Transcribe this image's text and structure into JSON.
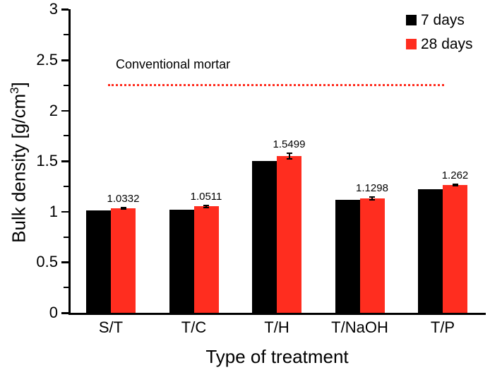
{
  "chart_data": {
    "type": "bar",
    "title": "",
    "xlabel": "Type of treatment",
    "ylabel": "Bulk density [g/cm³]",
    "categories": [
      "S/T",
      "T/C",
      "T/H",
      "T/NaOH",
      "T/P"
    ],
    "series": [
      {
        "name": "7 days",
        "color": "#000000",
        "values": [
          1.01,
          1.02,
          1.5,
          1.12,
          1.22
        ]
      },
      {
        "name": "28 days",
        "color": "#ff2d1f",
        "values": [
          1.0332,
          1.0511,
          1.5499,
          1.1298,
          1.262
        ],
        "data_labels": [
          "1.0332",
          "1.0511",
          "1.5499",
          "1.1298",
          "1.262"
        ],
        "error_bars": [
          0.008,
          0.012,
          0.03,
          0.014,
          0.006
        ]
      }
    ],
    "ylim": [
      0,
      3
    ],
    "y_major_ticks": [
      0,
      0.5,
      1,
      1.5,
      2,
      2.5,
      3
    ],
    "y_major_tick_labels": [
      "0",
      "0.5",
      "1",
      "1.5",
      "2",
      "2.5",
      "3"
    ],
    "y_minor_ticks": [
      0.25,
      0.75,
      1.25,
      1.75,
      2.25,
      2.75
    ],
    "grid": false,
    "legend_position": "top-right",
    "reference_line": {
      "label": "Conventional mortar",
      "value": 2.25,
      "color": "#ff2d1f",
      "style": "dotted"
    }
  }
}
